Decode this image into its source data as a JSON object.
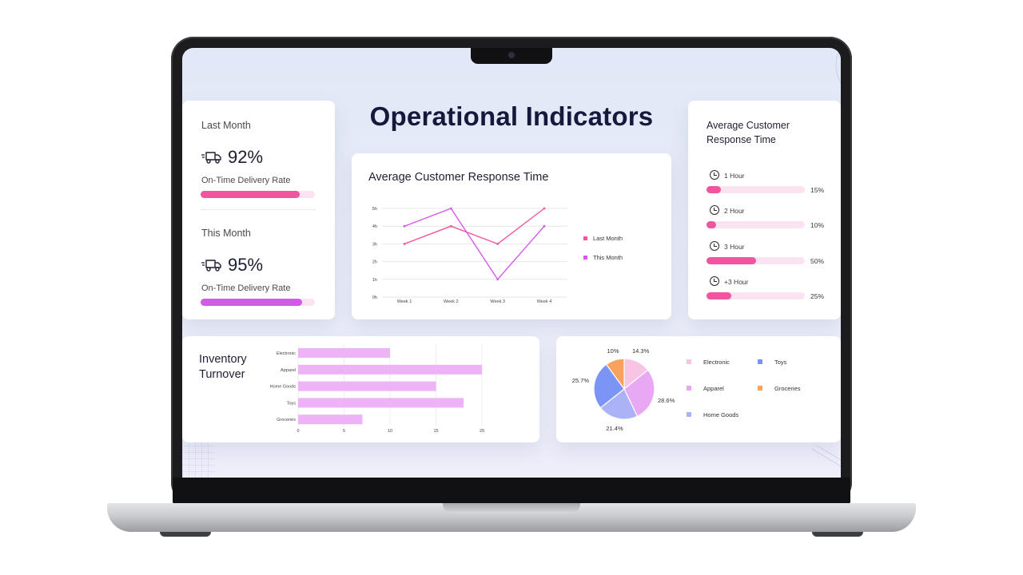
{
  "dashboard": {
    "title": "Operational Indicators"
  },
  "delivery": {
    "last_month": {
      "period": "Last Month",
      "value": "92%",
      "label": "On-Time Delivery Rate",
      "fill": 0.87,
      "color": "#f2559f"
    },
    "this_month": {
      "period": "This Month",
      "value": "95%",
      "label": "On-Time Delivery Rate",
      "fill": 0.89,
      "color": "#d35ae8"
    },
    "icon": "delivery-truck-icon"
  },
  "response_chart": {
    "title": "Average Customer Response Time"
  },
  "response_breakdown": {
    "title_line1": "Average Customer",
    "title_line2": "Response Time",
    "icon": "clock-icon",
    "items": [
      {
        "label": "1 Hour",
        "pct": "15%",
        "value": 15
      },
      {
        "label": "2 Hour",
        "pct": "10%",
        "value": 10
      },
      {
        "label": "3 Hour",
        "pct": "50%",
        "value": 50
      },
      {
        "label": "+3 Hour",
        "pct": "25%",
        "value": 25
      }
    ]
  },
  "inventory": {
    "title_line1": "Inventory",
    "title_line2": "Turnover"
  },
  "colors": {
    "pink": "#f2559f",
    "magenta": "#d35ae8",
    "bar": "#eeb2f6",
    "title": "#151a3c"
  },
  "chart_data": [
    {
      "type": "line",
      "title": "Average Customer Response Time",
      "categories": [
        "Week 1",
        "Week 2",
        "Week 3",
        "Week 4"
      ],
      "y_ticks": [
        "0h",
        "1h",
        "2h",
        "3h",
        "4h",
        "5h"
      ],
      "ylim": [
        0,
        5
      ],
      "grid": true,
      "legend_position": "right",
      "series": [
        {
          "name": "Last Month",
          "color": "#f2559f",
          "values": [
            3,
            4,
            3,
            5
          ]
        },
        {
          "name": "This Month",
          "color": "#d35ae8",
          "values": [
            4,
            5,
            1,
            4
          ]
        }
      ]
    },
    {
      "type": "bar",
      "orientation": "horizontal",
      "title": "Inventory Turnover",
      "categories": [
        "Electronic",
        "Apparel",
        "Home Goods",
        "Toys",
        "Groceries"
      ],
      "values": [
        10,
        20,
        15,
        18,
        7
      ],
      "x_ticks": [
        "0",
        "5",
        "10",
        "15",
        "20"
      ],
      "xlim": [
        0,
        22
      ],
      "grid": true,
      "color": "#eeb2f6"
    },
    {
      "type": "pie",
      "legend_position": "right",
      "slices": [
        {
          "name": "Electronic",
          "value": 14.3,
          "label": "14.3%",
          "color": "#f9c4e4"
        },
        {
          "name": "Apparel",
          "value": 28.6,
          "label": "28.6%",
          "color": "#e8a8f4"
        },
        {
          "name": "Home Goods",
          "value": 21.4,
          "label": "21.4%",
          "color": "#abb3f6"
        },
        {
          "name": "Toys",
          "value": 25.7,
          "label": "25.7%",
          "color": "#7b94f5"
        },
        {
          "name": "Groceries",
          "value": 10,
          "label": "10%",
          "color": "#f7a25d"
        }
      ]
    }
  ]
}
